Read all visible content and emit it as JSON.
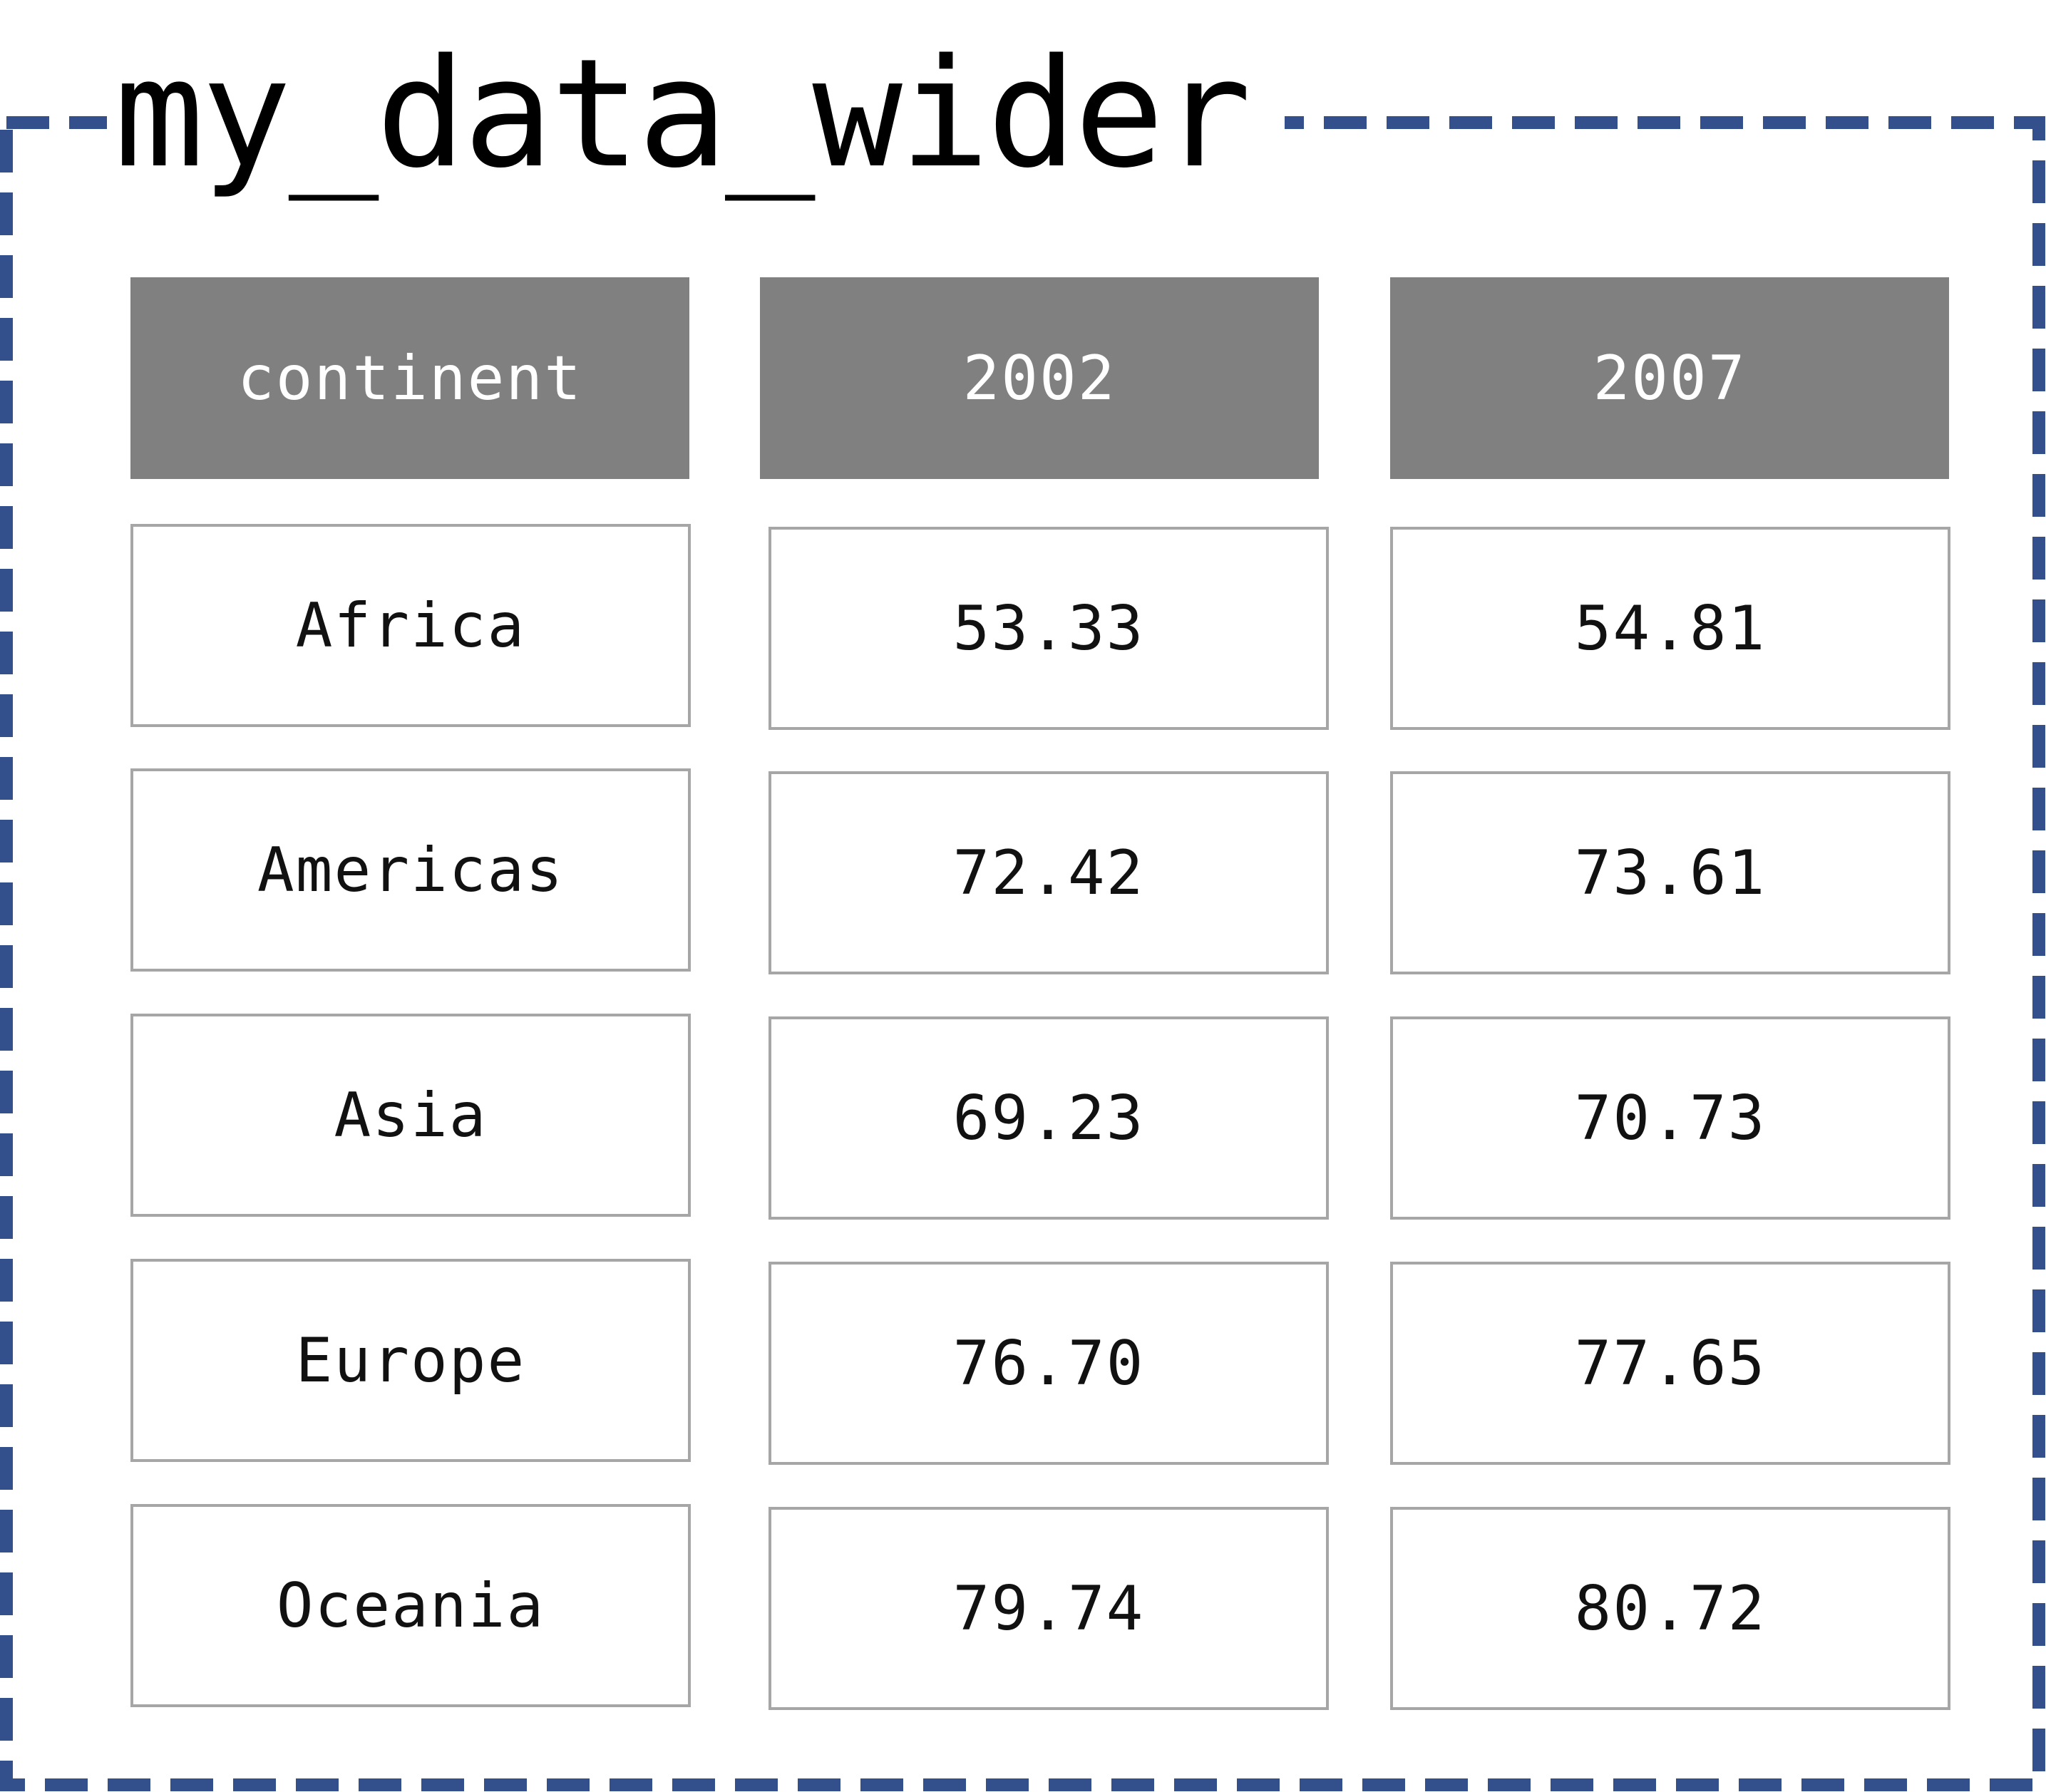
{
  "diagram": {
    "title": "my_data_wider",
    "colors": {
      "frame_border": "#34508c",
      "header_fill": "#808080",
      "header_text": "#ffffff",
      "cell_border": "#a6a6a6",
      "cell_text": "#111111"
    },
    "table": {
      "headers": [
        "continent",
        "2002",
        "2007"
      ],
      "rows": [
        [
          "Africa",
          "53.33",
          "54.81"
        ],
        [
          "Americas",
          "72.42",
          "73.61"
        ],
        [
          "Asia",
          "69.23",
          "70.73"
        ],
        [
          "Europe",
          "76.70",
          "77.65"
        ],
        [
          "Oceania",
          "79.74",
          "80.72"
        ]
      ]
    }
  }
}
